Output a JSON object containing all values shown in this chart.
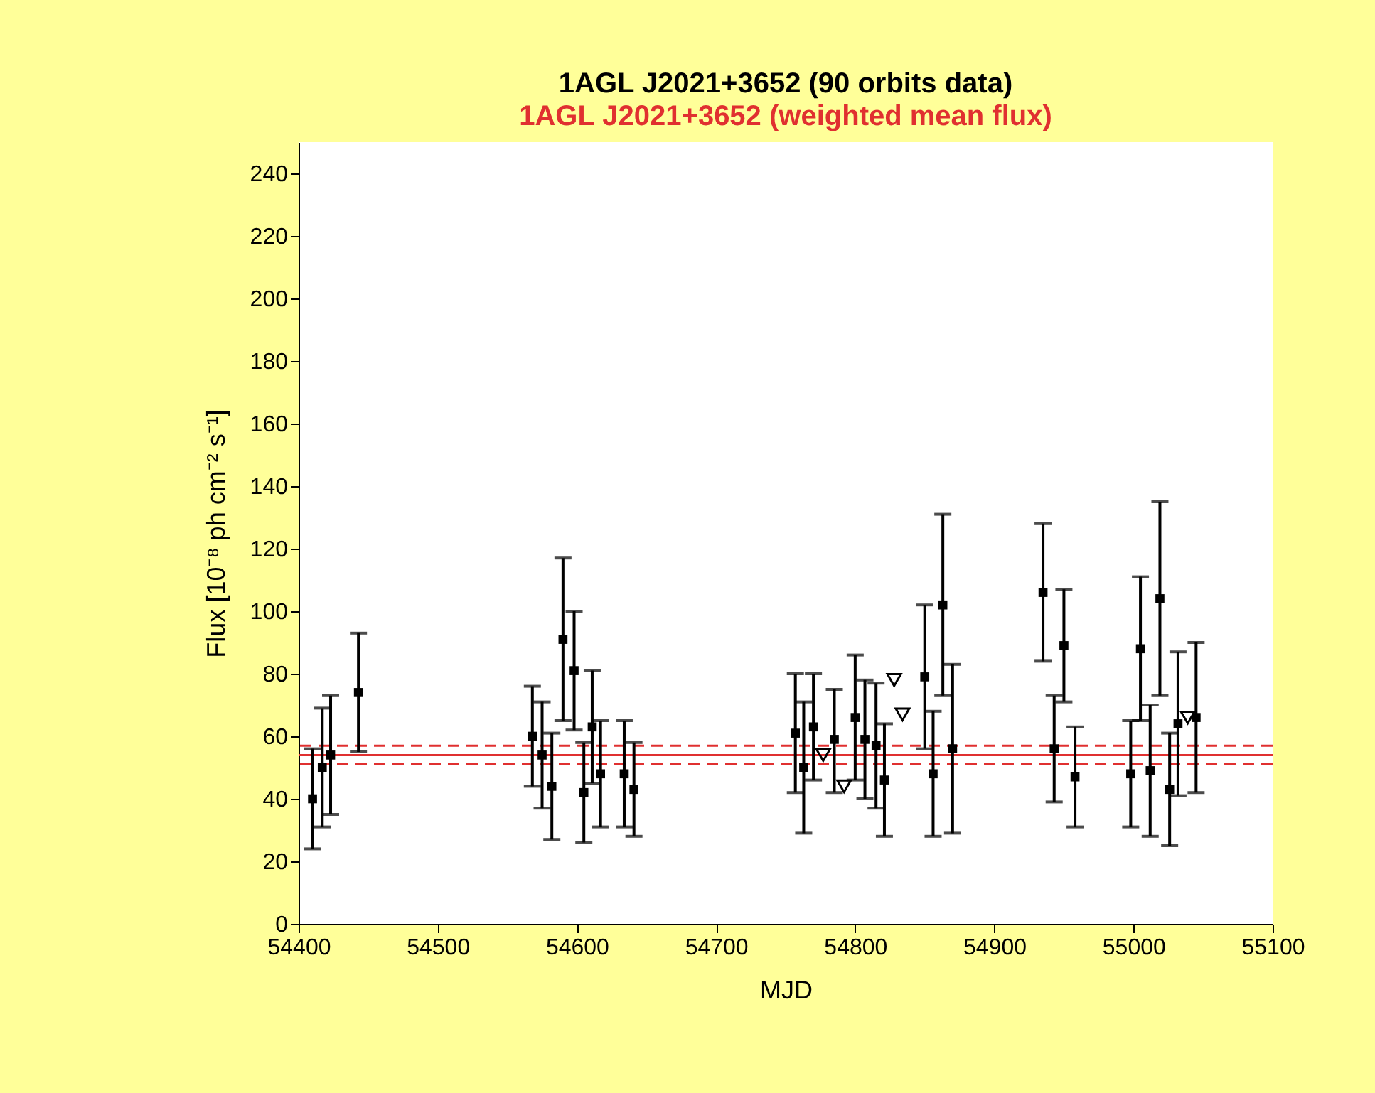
{
  "chart_data": {
    "type": "scatter",
    "title": "1AGL J2021+3652 (90 orbits data)",
    "subtitle": "1AGL J2021+3652 (weighted mean flux)",
    "xlabel": "MJD",
    "ylabel": "Flux [10⁻⁸ ph cm⁻² s⁻¹]",
    "xlim": [
      54400,
      55100
    ],
    "xticks": [
      54400,
      54500,
      54600,
      54700,
      54800,
      54900,
      55000,
      55100
    ],
    "ylim": [
      0,
      250
    ],
    "yticks": [
      0,
      20,
      40,
      60,
      80,
      100,
      120,
      140,
      160,
      180,
      200,
      220,
      240
    ],
    "grid": false,
    "series": [
      {
        "marker": "square",
        "color": "#000000",
        "x": [
          54410,
          54417,
          54423,
          54443,
          54568,
          54575,
          54582,
          54590,
          54598,
          54605,
          54611,
          54617,
          54634,
          54641,
          54757,
          54763,
          54770,
          54785,
          54800,
          54807,
          54815,
          54821,
          54850,
          54856,
          54863,
          54870,
          54935,
          54943,
          54950,
          54958,
          54998,
          55005,
          55012,
          55019,
          55026,
          55032,
          55045
        ],
        "values": [
          40,
          50,
          54,
          74,
          60,
          54,
          44,
          91,
          81,
          42,
          63,
          48,
          48,
          43,
          61,
          50,
          63,
          59,
          66,
          59,
          57,
          46,
          79,
          48,
          102,
          56,
          106,
          56,
          89,
          47,
          48,
          88,
          49,
          104,
          43,
          64,
          66
        ],
        "errors": [
          [
            24,
            56
          ],
          [
            31,
            69
          ],
          [
            35,
            73
          ],
          [
            55,
            93
          ],
          [
            44,
            76
          ],
          [
            37,
            71
          ],
          [
            27,
            61
          ],
          [
            65,
            117
          ],
          [
            62,
            100
          ],
          [
            26,
            58
          ],
          [
            45,
            81
          ],
          [
            31,
            65
          ],
          [
            31,
            65
          ],
          [
            28,
            58
          ],
          [
            42,
            80
          ],
          [
            29,
            71
          ],
          [
            46,
            80
          ],
          [
            42,
            75
          ],
          [
            46,
            86
          ],
          [
            40,
            78
          ],
          [
            37,
            77
          ],
          [
            28,
            64
          ],
          [
            56,
            102
          ],
          [
            28,
            68
          ],
          [
            73,
            131
          ],
          [
            29,
            83
          ],
          [
            84,
            128
          ],
          [
            39,
            73
          ],
          [
            71,
            107
          ],
          [
            31,
            63
          ],
          [
            31,
            65
          ],
          [
            65,
            111
          ],
          [
            28,
            70
          ],
          [
            73,
            135
          ],
          [
            25,
            61
          ],
          [
            41,
            87
          ],
          [
            42,
            90
          ]
        ]
      },
      {
        "marker": "triangle",
        "color": "#000000",
        "x": [
          54777,
          54792,
          54828,
          54834,
          55039
        ],
        "values": [
          54,
          44,
          78,
          67,
          66
        ]
      }
    ],
    "ref_lines": [
      {
        "axis": "y",
        "value": 54,
        "color": "#e03030",
        "line_style": "solid"
      },
      {
        "axis": "y",
        "value": 57,
        "color": "#e03030",
        "line_style": "dashed"
      },
      {
        "axis": "y",
        "value": 51,
        "color": "#e03030",
        "line_style": "dashed"
      }
    ]
  }
}
